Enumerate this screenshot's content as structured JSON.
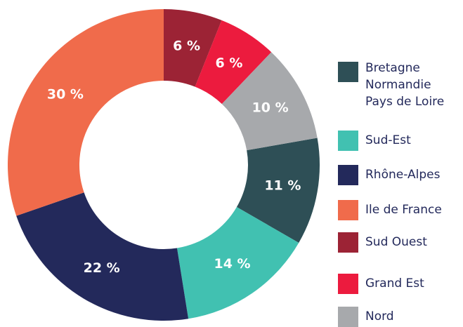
{
  "chart_data": {
    "type": "donut",
    "startangle": 80,
    "series": [
      {
        "name": "Bretagne\nNormandie\nPays de Loire",
        "color": "#2e4f56",
        "values": [
          11
        ],
        "value_labels": [
          "11 %"
        ]
      },
      {
        "name": "Sud-Est",
        "color": "#41c1b1",
        "values": [
          14
        ],
        "value_labels": [
          "14 %"
        ]
      },
      {
        "name": "Rhône-Alpes",
        "color": "#23295b",
        "values": [
          22
        ],
        "value_labels": [
          "22 %"
        ]
      },
      {
        "name": "Ile de France",
        "color": "#f06b4b",
        "values": [
          30
        ],
        "value_labels": [
          "30 %"
        ]
      },
      {
        "name": "Sud Ouest",
        "color": "#9c2335",
        "values": [
          6
        ],
        "value_labels": [
          "6 %"
        ]
      },
      {
        "name": "Grand Est",
        "color": "#ec1b3e",
        "values": [
          6
        ],
        "value_labels": [
          "6 %"
        ]
      },
      {
        "name": "Nord",
        "color": "#a7a9ac",
        "values": [
          10
        ],
        "value_labels": [
          "10 %"
        ]
      }
    ]
  }
}
